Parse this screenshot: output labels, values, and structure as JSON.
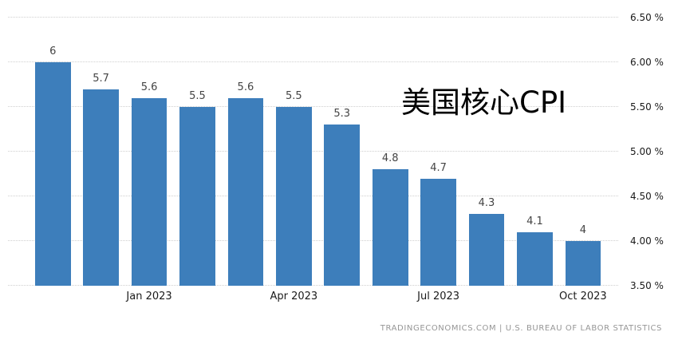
{
  "footer": "TRADINGECONOMICS.COM  |  U.S. BUREAU OF LABOR STATISTICS",
  "colors": {
    "bar": "#3d7ebb",
    "grid": "#cfcfcf",
    "bar_label": "#444444",
    "tick_label": "#1a1a1a",
    "footer_text": "#969696"
  },
  "chart_data": {
    "type": "bar",
    "title": "美国核心CPI",
    "values": [
      6,
      5.7,
      5.6,
      5.5,
      5.6,
      5.5,
      5.3,
      4.8,
      4.7,
      4.3,
      4.1,
      4
    ],
    "bar_labels": [
      "6",
      "5.7",
      "5.6",
      "5.5",
      "5.6",
      "5.5",
      "5.3",
      "4.8",
      "4.7",
      "4.3",
      "4.1",
      "4"
    ],
    "categories": [
      "",
      "",
      "Jan 2023",
      "",
      "",
      "Apr 2023",
      "",
      "",
      "Jul 2023",
      "",
      "",
      "Oct 2023"
    ],
    "yticks": [
      3.5,
      4,
      4.5,
      5,
      5.5,
      6,
      6.5
    ],
    "ytick_labels": [
      "3.50 %",
      "4.00 %",
      "4.50 %",
      "5.00 %",
      "5.50 %",
      "6.00 %",
      "6.50 %"
    ],
    "ylim": [
      3.5,
      6.5
    ],
    "grid": "dotted-horizontal",
    "legend": "none",
    "y_axis_position": "right"
  }
}
